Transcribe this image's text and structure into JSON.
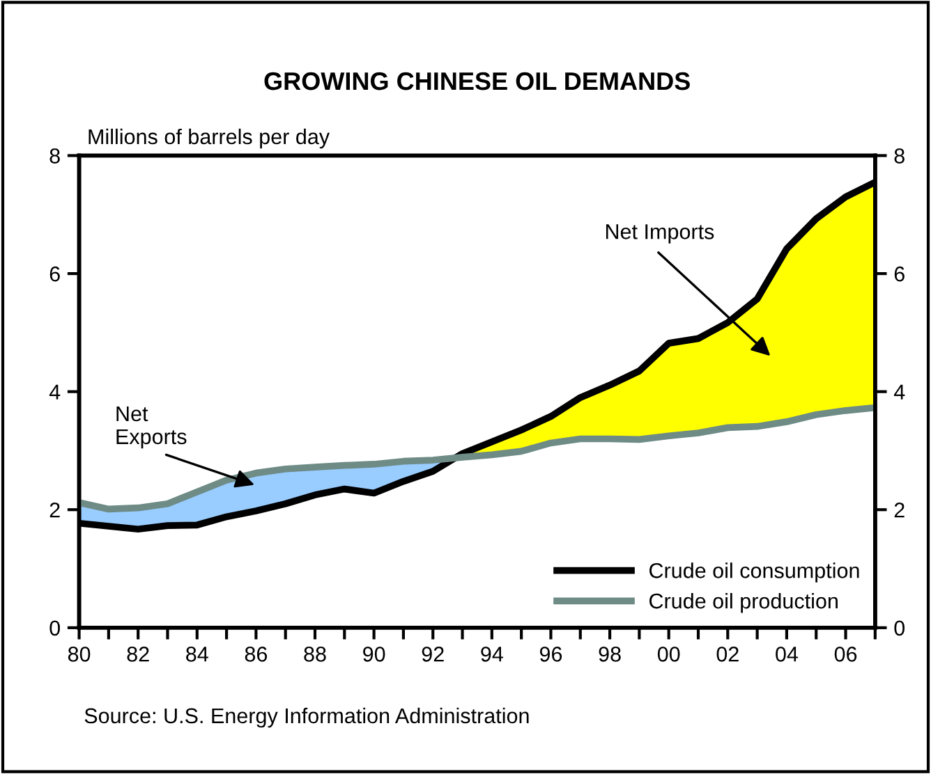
{
  "chart_data": {
    "type": "line",
    "title": "GROWING CHINESE OIL DEMANDS",
    "ylabel": "Millions of barrels per day",
    "x": [
      1980,
      1981,
      1982,
      1983,
      1984,
      1985,
      1986,
      1987,
      1988,
      1989,
      1990,
      1991,
      1992,
      1993,
      1994,
      1995,
      1996,
      1997,
      1998,
      1999,
      2000,
      2001,
      2002,
      2003,
      2004,
      2005,
      2006,
      2007
    ],
    "series": [
      {
        "name": "Crude oil consumption",
        "color": "#000000",
        "values": [
          1.77,
          1.72,
          1.67,
          1.73,
          1.74,
          1.88,
          1.98,
          2.1,
          2.25,
          2.35,
          2.28,
          2.48,
          2.65,
          2.95,
          3.15,
          3.35,
          3.58,
          3.9,
          4.11,
          4.35,
          4.82,
          4.9,
          5.17,
          5.57,
          6.42,
          6.93,
          7.3,
          7.55
        ]
      },
      {
        "name": "Crude oil production",
        "color": "#6e8b85",
        "values": [
          2.12,
          2.01,
          2.03,
          2.1,
          2.3,
          2.5,
          2.62,
          2.69,
          2.72,
          2.75,
          2.77,
          2.82,
          2.84,
          2.89,
          2.93,
          2.99,
          3.13,
          3.2,
          3.2,
          3.19,
          3.25,
          3.3,
          3.39,
          3.41,
          3.49,
          3.61,
          3.68,
          3.73
        ]
      },
      {
        "type": "area",
        "color": "#ffff00",
        "values": [
          null,
          null,
          null,
          null,
          null,
          null,
          null,
          null,
          null,
          null,
          null,
          null,
          null,
          2.95,
          3.15,
          3.35,
          3.58,
          3.9,
          4.11,
          4.35,
          4.82,
          4.9,
          5.17,
          5.57,
          6.42,
          6.93,
          7.3,
          7.55
        ]
      },
      {
        "type": "area",
        "color": "#99ccff",
        "values": [
          2.12,
          2.01,
          2.03,
          2.1,
          2.3,
          2.5,
          2.62,
          2.69,
          2.72,
          2.75,
          2.77,
          2.82,
          2.84,
          2.89,
          null,
          null,
          null,
          null,
          null,
          null,
          null,
          null,
          null,
          null,
          null,
          null,
          null,
          null
        ]
      }
    ],
    "xlim": [
      1980,
      2007
    ],
    "xticks": [
      {
        "value": 1980,
        "label": "80"
      },
      {
        "value": 1981,
        "label": null
      },
      {
        "value": 1982,
        "label": "82"
      },
      {
        "value": 1983,
        "label": null
      },
      {
        "value": 1984,
        "label": "84"
      },
      {
        "value": 1985,
        "label": null
      },
      {
        "value": 1986,
        "label": "86"
      },
      {
        "value": 1987,
        "label": null
      },
      {
        "value": 1988,
        "label": "88"
      },
      {
        "value": 1989,
        "label": null
      },
      {
        "value": 1990,
        "label": "90"
      },
      {
        "value": 1991,
        "label": null
      },
      {
        "value": 1992,
        "label": "92"
      },
      {
        "value": 1993,
        "label": null
      },
      {
        "value": 1994,
        "label": "94"
      },
      {
        "value": 1995,
        "label": null
      },
      {
        "value": 1996,
        "label": "96"
      },
      {
        "value": 1997,
        "label": null
      },
      {
        "value": 1998,
        "label": "98"
      },
      {
        "value": 1999,
        "label": null
      },
      {
        "value": 2000,
        "label": "00"
      },
      {
        "value": 2001,
        "label": null
      },
      {
        "value": 2002,
        "label": "02"
      },
      {
        "value": 2003,
        "label": null
      },
      {
        "value": 2004,
        "label": "04"
      },
      {
        "value": 2005,
        "label": null
      },
      {
        "value": 2006,
        "label": "06"
      },
      {
        "value": 2007,
        "label": null
      }
    ],
    "ylim": [
      0,
      8
    ],
    "yticks": [
      0,
      2,
      4,
      6,
      8
    ],
    "y2lim": [
      0,
      8
    ],
    "y2ticks": [
      0,
      2,
      4,
      6,
      8
    ],
    "annotations": [
      "Net Imports",
      "Net\nExports",
      "Source: U.S. Energy Information Administration"
    ],
    "legend": "bottom right",
    "grid": false,
    "marker": "none",
    "line_style": "solid"
  }
}
